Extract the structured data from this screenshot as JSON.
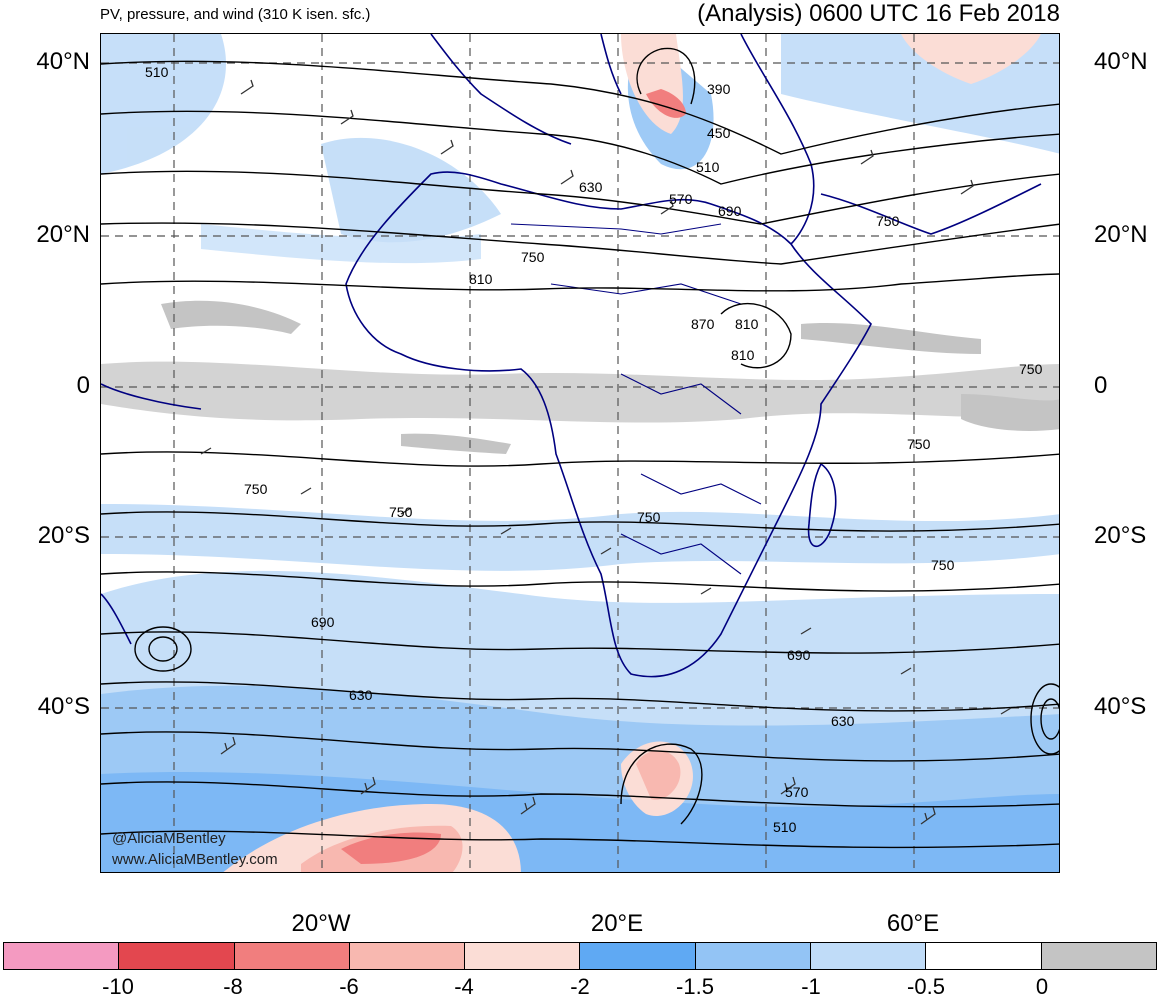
{
  "header": {
    "subtitle": "PV, pressure, and wind (310 K isen. sfc.)",
    "title": "(Analysis) 0600 UTC 16 Feb 2018"
  },
  "lat_labels": [
    "40°N",
    "20°N",
    "0",
    "20°S",
    "40°S"
  ],
  "lon_labels": [
    "20°W",
    "20°E",
    "60°E"
  ],
  "contour_labels": [
    "510",
    "390",
    "450",
    "510",
    "630",
    "570",
    "690",
    "750",
    "750",
    "810",
    "870",
    "810",
    "810",
    "750",
    "750",
    "750",
    "750",
    "750",
    "750",
    "690",
    "690",
    "630",
    "630",
    "570",
    "510"
  ],
  "colorbar": {
    "colors": [
      "#f49ac1",
      "#e3474f",
      "#f17e7e",
      "#f8b8b0",
      "#fbddd6",
      "#5fa9f3",
      "#93c4f5",
      "#c0dcf8",
      "#ffffff",
      "#c4c4c4"
    ],
    "ticks": [
      "-10",
      "-8",
      "-6",
      "-4",
      "-2",
      "-1.5",
      "-1",
      "-0.5",
      "0"
    ]
  },
  "watermark": {
    "handle": "@AliciaMBentley",
    "site": "www.AliciaMBentley.com"
  }
}
